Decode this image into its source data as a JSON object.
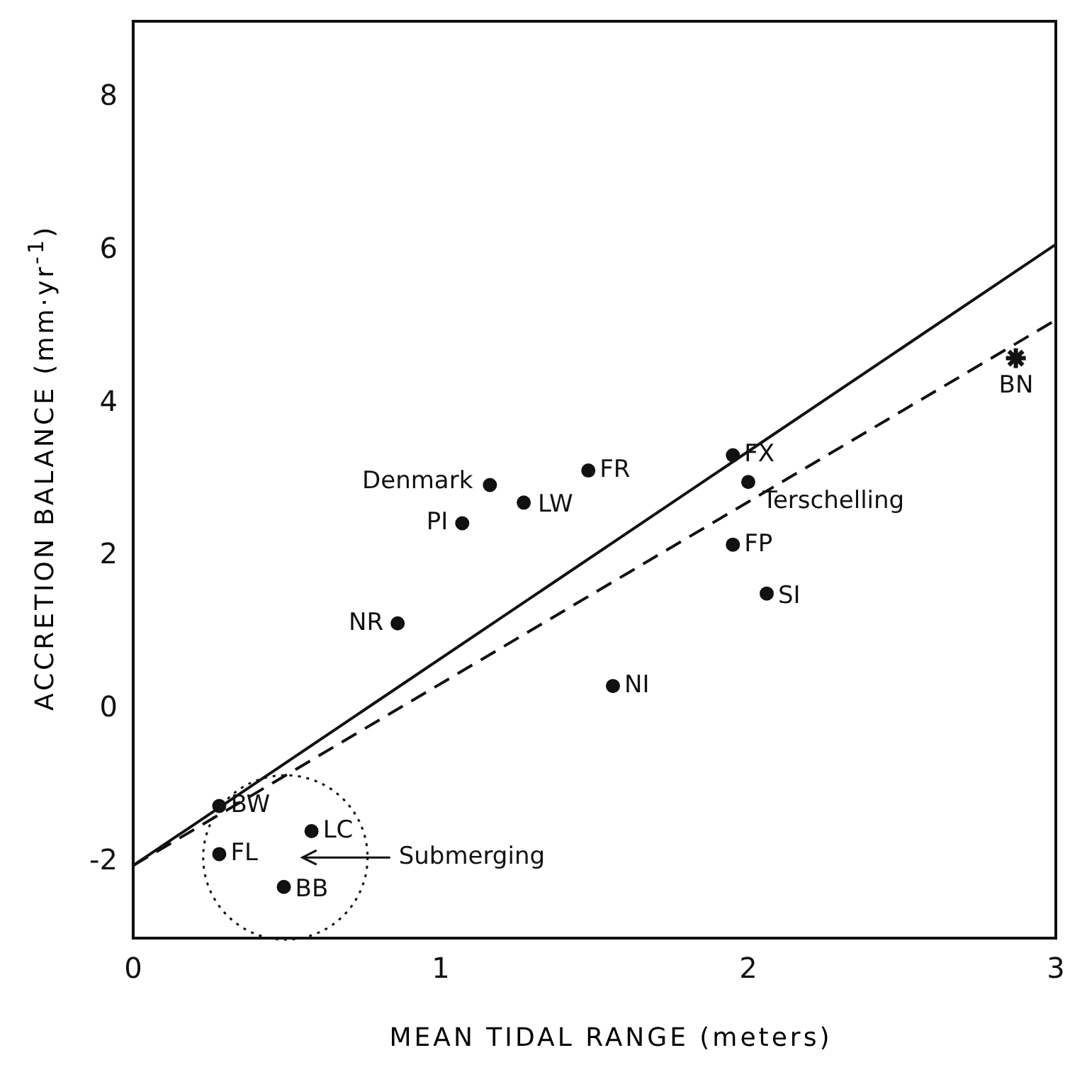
{
  "chart_data": {
    "type": "scatter",
    "xlabel": "MEAN TIDAL RANGE (meters)",
    "ylabel": "ACCRETION BALANCE (mm·yr$^{-1}$)",
    "xlim": [
      0,
      3
    ],
    "ylim": [
      -3,
      9
    ],
    "xticks": [
      0,
      1,
      2,
      3
    ],
    "yticks": [
      -2,
      0,
      2,
      4,
      6,
      8
    ],
    "grid": false,
    "legend": false,
    "series": [
      {
        "marker": "circle",
        "color": "#111111",
        "x": [
          0.28,
          0.28,
          0.58,
          0.49,
          0.86,
          1.07,
          1.16,
          1.27,
          1.48,
          1.56,
          1.95,
          2.0,
          1.95,
          2.06
        ],
        "values": [
          -1.27,
          -1.9,
          -1.6,
          -2.33,
          1.12,
          2.43,
          2.93,
          2.7,
          3.12,
          0.3,
          3.32,
          2.97,
          2.15,
          1.51
        ]
      },
      {
        "marker": "cross",
        "color": "#111111",
        "x": [
          2.87
        ],
        "values": [
          4.59
        ]
      },
      {
        "type": "line",
        "line_style": "solid",
        "color": "#111111",
        "x": [
          0,
          3
        ],
        "values": [
          -2.05,
          6.08
        ]
      },
      {
        "type": "line",
        "line_style": "dashed",
        "color": "#111111",
        "x": [
          0,
          3
        ],
        "values": [
          -2.05,
          5.09
        ]
      }
    ],
    "annotations": [
      {
        "text": "BW",
        "x": 0.28,
        "y": -1.27
      },
      {
        "text": "FL",
        "x": 0.28,
        "y": -1.9
      },
      {
        "text": "LC",
        "x": 0.58,
        "y": -1.6
      },
      {
        "text": "BB",
        "x": 0.49,
        "y": -2.33
      },
      {
        "text": "NR",
        "x": 0.86,
        "y": 1.12
      },
      {
        "text": "PI",
        "x": 1.07,
        "y": 2.43
      },
      {
        "text": "Denmark",
        "x": 1.16,
        "y": 2.93
      },
      {
        "text": "LW",
        "x": 1.27,
        "y": 2.7
      },
      {
        "text": "FR",
        "x": 1.48,
        "y": 3.12
      },
      {
        "text": "NI",
        "x": 1.56,
        "y": 0.3
      },
      {
        "text": "FX",
        "x": 1.95,
        "y": 3.32
      },
      {
        "text": "Terschelling",
        "x": 2.0,
        "y": 2.97
      },
      {
        "text": "FP",
        "x": 1.95,
        "y": 2.15
      },
      {
        "text": "SI",
        "x": 2.06,
        "y": 1.51
      },
      {
        "text": "BN",
        "x": 2.87,
        "y": 4.59
      },
      "Submerging"
    ]
  }
}
